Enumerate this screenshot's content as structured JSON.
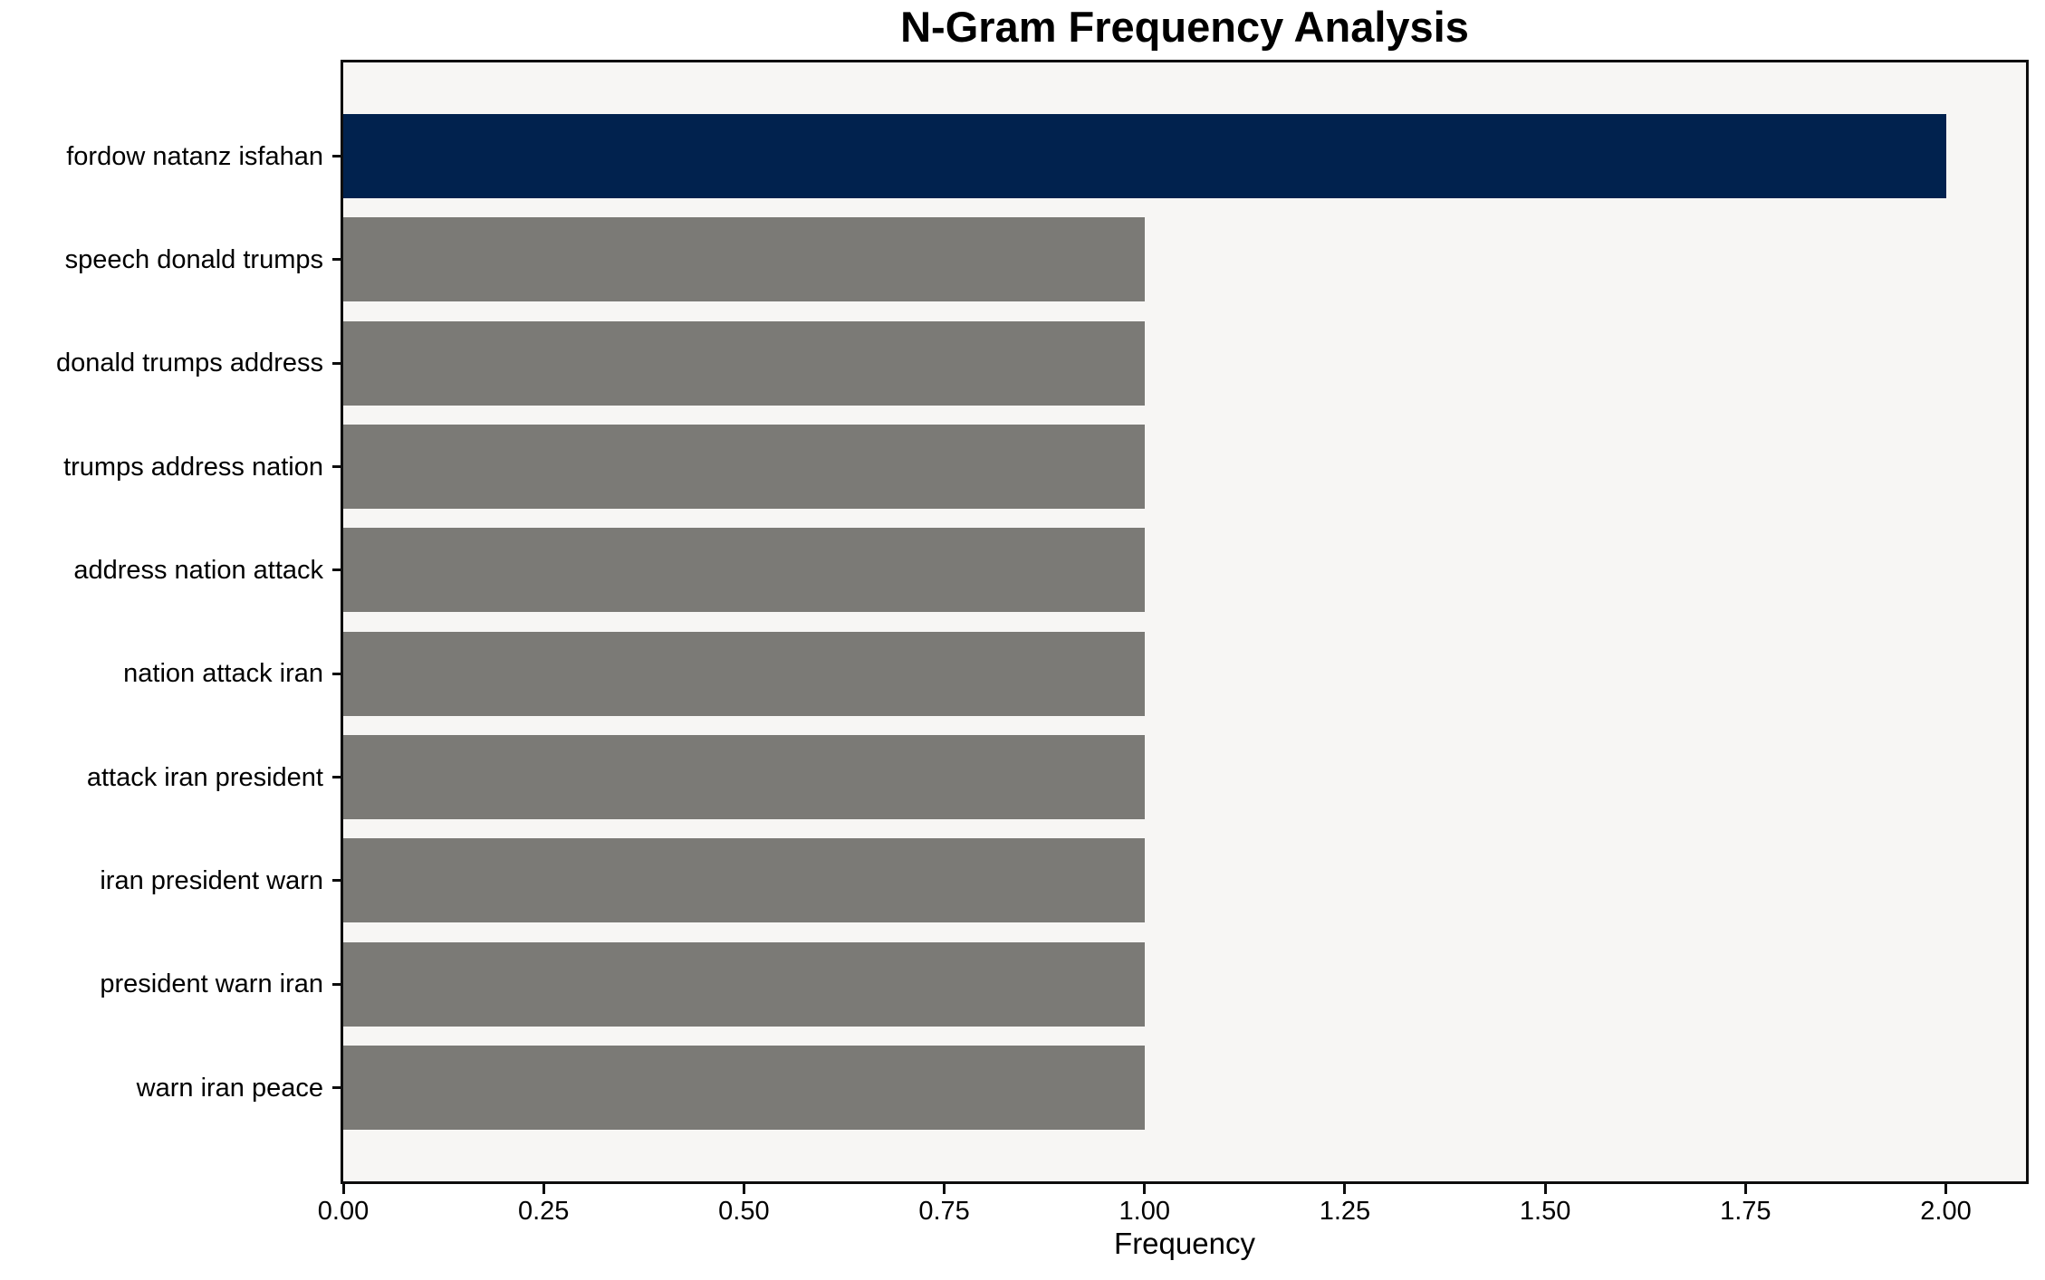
{
  "figure": {
    "background": "#ffffff",
    "plot_background": "#f7f6f4",
    "spine_color": "#0d0d0d"
  },
  "chart_data": {
    "type": "bar",
    "orientation": "horizontal",
    "title": "N-Gram Frequency Analysis",
    "xlabel": "Frequency",
    "ylabel": "",
    "categories": [
      "fordow natanz isfahan",
      "speech donald trumps",
      "donald trumps address",
      "trumps address nation",
      "address nation attack",
      "nation attack iran",
      "attack iran president",
      "iran president warn",
      "president warn iran",
      "warn iran peace"
    ],
    "values": [
      2,
      1,
      1,
      1,
      1,
      1,
      1,
      1,
      1,
      1
    ],
    "bar_colors": [
      "#01224e",
      "#7b7a76",
      "#7b7a76",
      "#7b7a76",
      "#7b7a76",
      "#7b7a76",
      "#7b7a76",
      "#7b7a76",
      "#7b7a76",
      "#7b7a76"
    ],
    "highlight_color": "#01224e",
    "default_color": "#7b7a76",
    "xlim": [
      0,
      2.1
    ],
    "xtick_labels": [
      "0.00",
      "0.25",
      "0.50",
      "0.75",
      "1.00",
      "1.25",
      "1.50",
      "1.75",
      "2.00"
    ],
    "xtick_values": [
      0,
      0.25,
      0.5,
      0.75,
      1.0,
      1.25,
      1.5,
      1.75,
      2.0
    ],
    "grid": false,
    "legend": false
  }
}
